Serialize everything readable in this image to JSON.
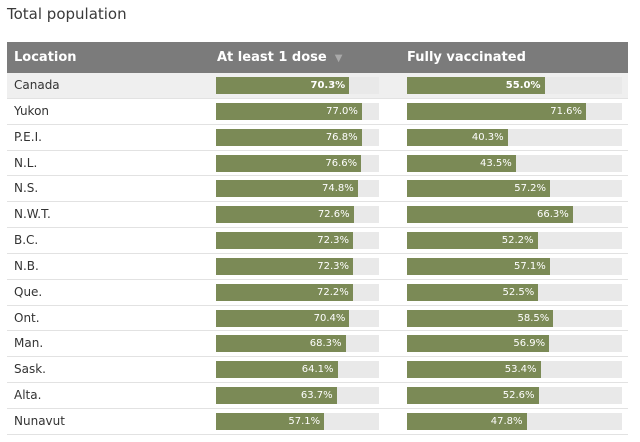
{
  "title": "Total population",
  "header": {
    "location": "Location",
    "dose": "At least 1 dose",
    "full": "Fully vaccinated",
    "sort_icon": "sort-down-triangle"
  },
  "colors": {
    "bar": "#7b8a56",
    "track": "#e9e9e9",
    "header_bg": "#7b7b7b"
  },
  "chart_data": {
    "type": "bar",
    "title": "Total population",
    "categories": [
      "Canada",
      "Yukon",
      "P.E.I.",
      "N.L.",
      "N.S.",
      "N.W.T.",
      "B.C.",
      "N.B.",
      "Que.",
      "Ont.",
      "Man.",
      "Sask.",
      "Alta.",
      "Nunavut"
    ],
    "series": [
      {
        "name": "At least 1 dose",
        "values": [
          70.3,
          77.0,
          76.8,
          76.6,
          74.8,
          72.6,
          72.3,
          72.3,
          72.2,
          70.4,
          68.3,
          64.1,
          63.7,
          57.1
        ],
        "labels": [
          "70.3%",
          "77.0%",
          "76.8%",
          "76.6%",
          "74.8%",
          "72.6%",
          "72.3%",
          "72.3%",
          "72.2%",
          "70.4%",
          "68.3%",
          "64.1%",
          "63.7%",
          "57.1%"
        ]
      },
      {
        "name": "Fully vaccinated",
        "values": [
          55.0,
          71.6,
          40.3,
          43.5,
          57.2,
          66.3,
          52.2,
          57.1,
          52.5,
          58.5,
          56.9,
          53.4,
          52.6,
          47.8
        ],
        "labels": [
          "55.0%",
          "71.6%",
          "40.3%",
          "43.5%",
          "57.2%",
          "66.3%",
          "52.2%",
          "57.1%",
          "52.5%",
          "58.5%",
          "56.9%",
          "53.4%",
          "52.6%",
          "47.8%"
        ]
      }
    ],
    "xlabel": "",
    "ylabel": "",
    "ylim": [
      0,
      100
    ]
  }
}
